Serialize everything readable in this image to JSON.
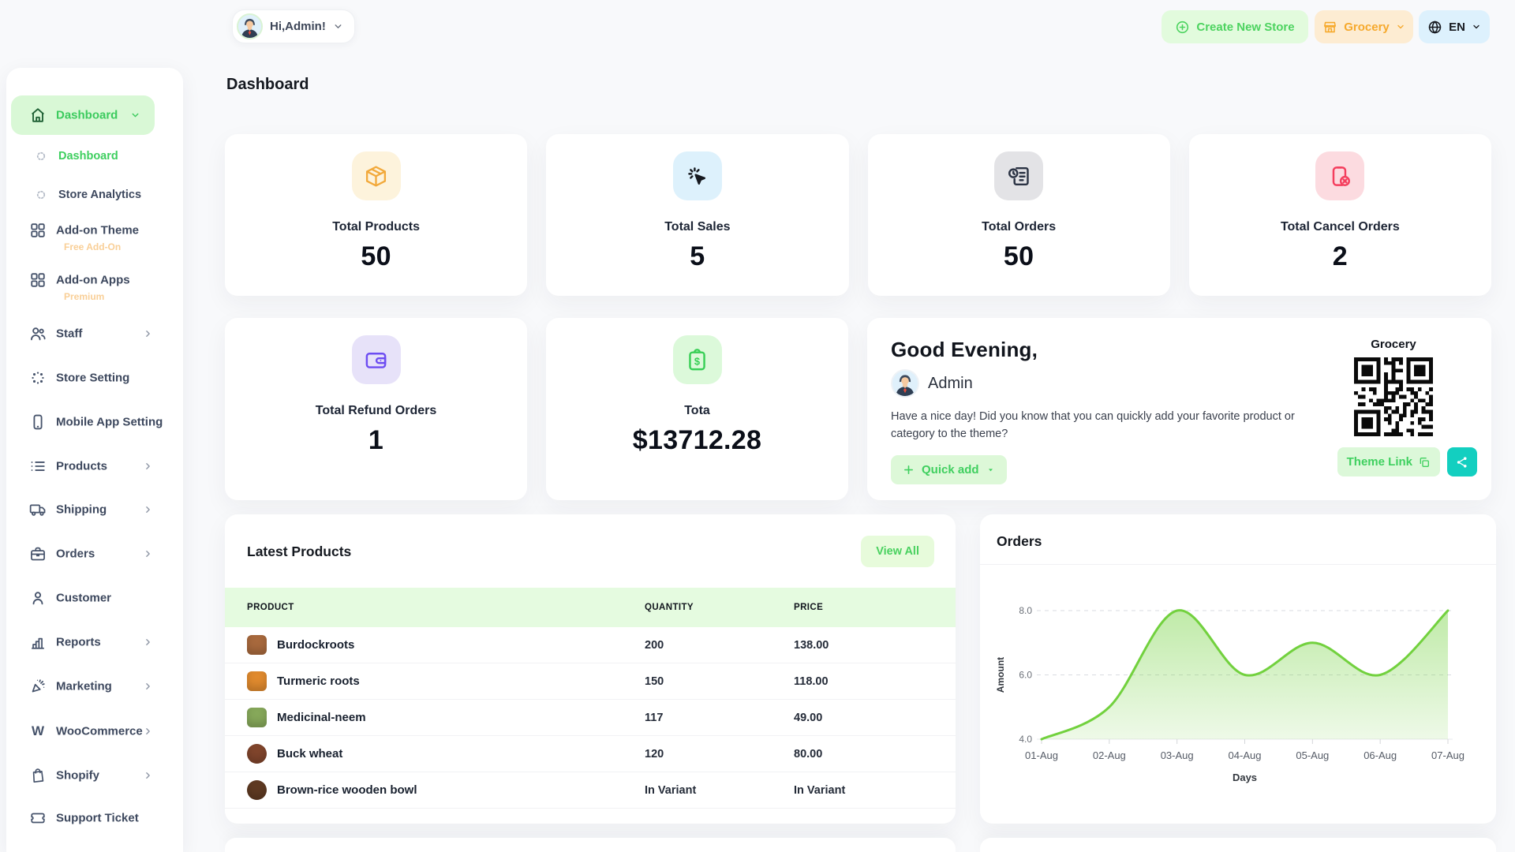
{
  "topbar": {
    "greeting": "Hi,Admin!",
    "create_store_label": "Create New Store",
    "store_label": "Grocery",
    "language_label": "EN"
  },
  "page_title": "Dashboard",
  "sidebar": {
    "items": [
      {
        "label": "Dashboard",
        "icon": "home",
        "type": "active",
        "chevron": "down"
      },
      {
        "label": "Dashboard",
        "icon": "spinner",
        "type": "sub-active"
      },
      {
        "label": "Store Analytics",
        "icon": "spinner",
        "type": "sub"
      },
      {
        "label": "Add-on Theme",
        "icon": "grid",
        "badge": "Free Add-On"
      },
      {
        "label": "Add-on Apps",
        "icon": "grid",
        "badge": "Premium"
      },
      {
        "label": "Staff",
        "icon": "users",
        "chevron": "right"
      },
      {
        "label": "Store Setting",
        "icon": "dots-circle"
      },
      {
        "label": "Mobile App Setting",
        "icon": "mobile"
      },
      {
        "label": "Products",
        "icon": "list",
        "chevron": "right"
      },
      {
        "label": "Shipping",
        "icon": "truck",
        "chevron": "right"
      },
      {
        "label": "Orders",
        "icon": "briefcase",
        "chevron": "right"
      },
      {
        "label": "Customer",
        "icon": "user"
      },
      {
        "label": "Reports",
        "icon": "bar-chart",
        "chevron": "right"
      },
      {
        "label": "Marketing",
        "icon": "megaphone",
        "chevron": "right"
      },
      {
        "label": "WooCommerce",
        "icon": "woo",
        "chevron": "right"
      },
      {
        "label": "Shopify",
        "icon": "shopify",
        "chevron": "right"
      },
      {
        "label": "Support Ticket",
        "icon": "ticket"
      }
    ]
  },
  "stats": [
    {
      "label": "Total Products",
      "value": "50",
      "icon": "package",
      "icon_color": "#f2a93b",
      "icon_bg": "#fdf3dc"
    },
    {
      "label": "Total Sales",
      "value": "5",
      "icon": "cursor-click",
      "icon_color": "#16191f",
      "icon_bg": "#ddf1fc"
    },
    {
      "label": "Total Orders",
      "value": "50",
      "icon": "doc-clock",
      "icon_color": "#2b3344",
      "icon_bg": "#e3e3e6"
    },
    {
      "label": "Total Cancel Orders",
      "value": "2",
      "icon": "phone-cancel",
      "icon_color": "#f43f5e",
      "icon_bg": "#fcdbe0"
    },
    {
      "label": "Total Refund Orders",
      "value": "1",
      "icon": "wallet",
      "icon_color": "#6d4df2",
      "icon_bg": "#e7e2f9"
    },
    {
      "label": "Tota",
      "value": "$13712.28",
      "icon": "clipboard-dollar",
      "icon_color": "#38cf56",
      "icon_bg": "#dcf9da"
    }
  ],
  "greeting_card": {
    "title": "Good Evening,",
    "user_name": "Admin",
    "message": "Have a nice day! Did you know that you can quickly add your favorite product or category to the theme?",
    "quick_add_label": "Quick add",
    "qr_title": "Grocery",
    "theme_link_label": "Theme Link"
  },
  "latest_products": {
    "title": "Latest Products",
    "view_all_label": "View All",
    "columns": [
      "PRODUCT",
      "QUANTITY",
      "PRICE"
    ],
    "rows": [
      {
        "name": "Burdockroots",
        "quantity": "200",
        "price": "138.00",
        "thumb": "#a8693d",
        "thumb_shape": "square"
      },
      {
        "name": "Turmeric roots",
        "quantity": "150",
        "price": "118.00",
        "thumb": "#e08a2e",
        "thumb_shape": "square"
      },
      {
        "name": "Medicinal-neem",
        "quantity": "117",
        "price": "49.00",
        "thumb": "#86a85a",
        "thumb_shape": "square"
      },
      {
        "name": "Buck wheat",
        "quantity": "120",
        "price": "80.00",
        "thumb": "#81452c",
        "thumb_shape": "circle"
      },
      {
        "name": "Brown-rice wooden bowl",
        "quantity": "In Variant",
        "price": "In Variant",
        "thumb": "#5f3a22",
        "thumb_shape": "circle"
      }
    ]
  },
  "chart_data": {
    "type": "area",
    "title": "Orders",
    "x": [
      "01-Aug",
      "02-Aug",
      "03-Aug",
      "04-Aug",
      "05-Aug",
      "06-Aug",
      "07-Aug"
    ],
    "series": [
      {
        "name": "Orders",
        "values": [
          4,
          5,
          8,
          6,
          7,
          6,
          8
        ]
      }
    ],
    "xlabel": "Days",
    "ylabel": "Amount",
    "ylim": [
      4,
      8
    ],
    "yticks": [
      8,
      6,
      4
    ],
    "grid": "dashed-horizontal",
    "legend": "none",
    "line_color": "#72d13e"
  },
  "colors": {
    "accent_green": "#3fcf5f",
    "accent_green_bg": "#ddf8d8",
    "orange": "#f6a92c",
    "orange_bg": "#fdecd2",
    "blue_bg": "#ddf1fd",
    "teal": "#13cfc0",
    "red": "#f43f5e",
    "purple": "#6d4df2",
    "page_bg": "#f8f9fb"
  }
}
